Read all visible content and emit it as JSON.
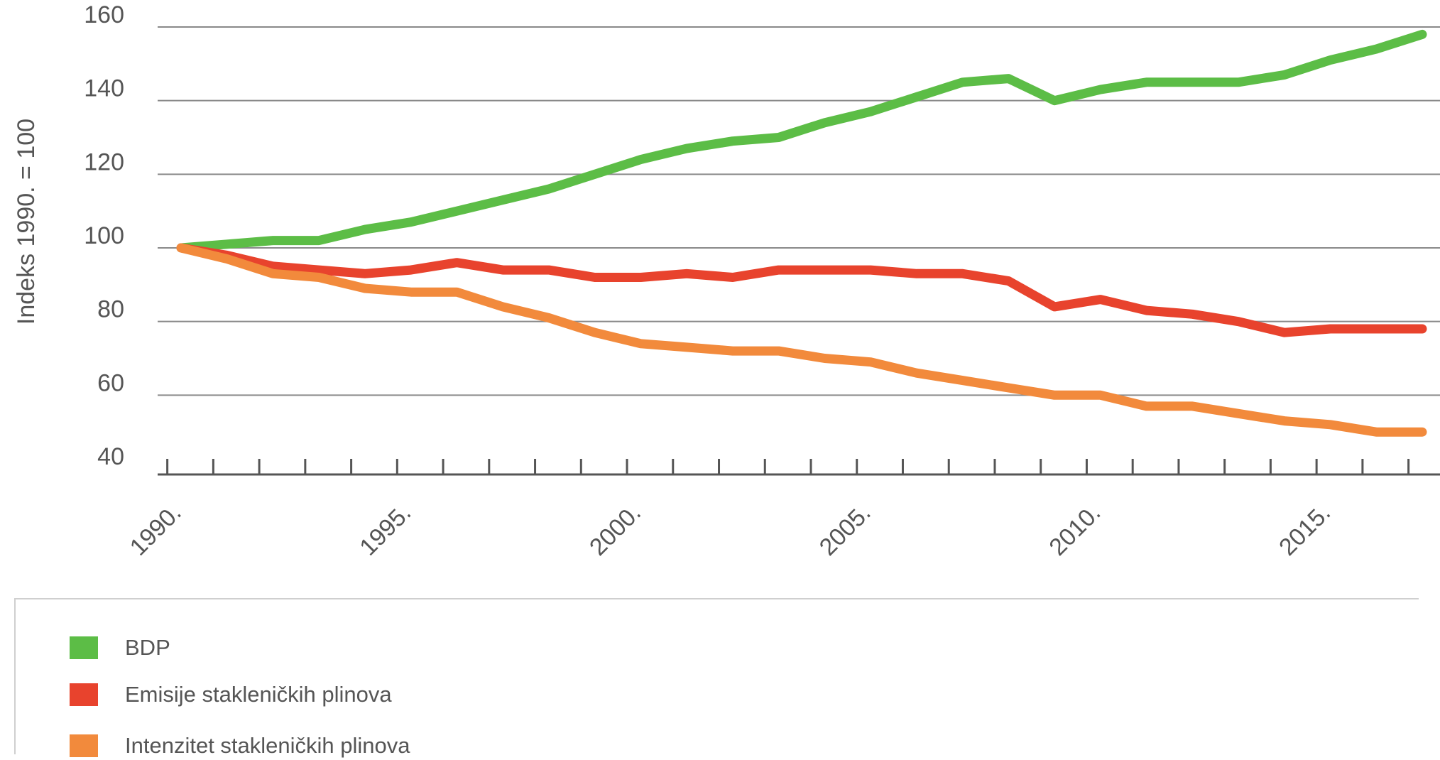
{
  "chart_data": {
    "type": "line",
    "title": "",
    "ylabel": "Indeks 1990. = 100",
    "xlabel": "",
    "ylim": [
      40,
      160
    ],
    "yticks": [
      40,
      60,
      80,
      100,
      120,
      140,
      160
    ],
    "x": [
      1990,
      1991,
      1992,
      1993,
      1994,
      1995,
      1996,
      1997,
      1998,
      1999,
      2000,
      2001,
      2002,
      2003,
      2004,
      2005,
      2006,
      2007,
      2008,
      2009,
      2010,
      2011,
      2012,
      2013,
      2014,
      2015,
      2016,
      2017
    ],
    "xtick_labels": [
      "1990.",
      "1995.",
      "2000.",
      "2005.",
      "2010.",
      "2015."
    ],
    "xtick_label_years": [
      1990,
      1995,
      2000,
      2005,
      2010,
      2015
    ],
    "grid": true,
    "legend_position": "bottom",
    "series": [
      {
        "name": "BDP",
        "color": "#5cbd46",
        "values": [
          100,
          101,
          102,
          102,
          105,
          107,
          110,
          113,
          116,
          120,
          124,
          127,
          129,
          130,
          134,
          137,
          141,
          145,
          146,
          140,
          143,
          145,
          145,
          145,
          147,
          151,
          154,
          158
        ]
      },
      {
        "name": "Emisije stakleničkih plinova",
        "color": "#e8432d",
        "values": [
          100,
          98,
          95,
          94,
          93,
          94,
          96,
          94,
          94,
          92,
          92,
          93,
          92,
          94,
          94,
          94,
          93,
          93,
          91,
          84,
          86,
          83,
          82,
          80,
          77,
          78,
          78,
          78
        ]
      },
      {
        "name": "Intenzitet stakleničkih plinova",
        "color": "#f28a3c",
        "values": [
          100,
          97,
          93,
          92,
          89,
          88,
          88,
          84,
          81,
          77,
          74,
          73,
          72,
          72,
          70,
          69,
          66,
          64,
          62,
          60,
          60,
          57,
          57,
          55,
          53,
          52,
          50,
          50
        ]
      }
    ]
  }
}
